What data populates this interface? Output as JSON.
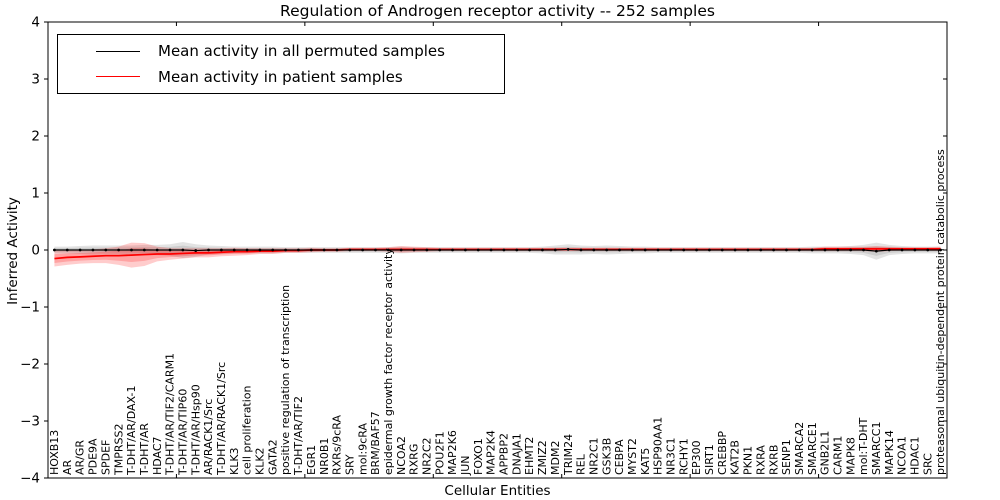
{
  "title": "Regulation of Androgen receptor activity -- 252 samples",
  "legend": {
    "items": [
      {
        "label": "Mean activity in all permuted samples",
        "color": "#000000"
      },
      {
        "label": "Mean activity in patient samples",
        "color": "#ff0000"
      }
    ],
    "position": "upper left"
  },
  "chart_data": {
    "type": "line",
    "title": "Regulation of Androgen receptor activity -- 252 samples",
    "xlabel": "Cellular Entities",
    "ylabel": "Inferred Activity",
    "ylim": [
      -4,
      4
    ],
    "yticks": [
      -4,
      -3,
      -2,
      -1,
      0,
      1,
      2,
      3,
      4
    ],
    "xlim": [
      0,
      70
    ],
    "xticks": [
      0,
      10,
      20,
      30,
      40,
      50,
      60,
      70
    ],
    "grid": false,
    "legend_position": "upper left",
    "categories": [
      "HOXB13",
      "AR",
      "AR/GR",
      "PDE9A",
      "SPDEF",
      "TMPRSS2",
      "T-DHT/AR/DAX-1",
      "T-DHT/AR",
      "HDAC7",
      "T-DHT/AR/TIF2/CARM1",
      "T-DHT/AR/TIP60",
      "T-DHT/AR/Hsp90",
      "AR/RACK1/Src",
      "T-DHT/AR/RACK1/Src",
      "KLK3",
      "cell proliferation",
      "KLK2",
      "GATA2",
      "positive regulation of transcription",
      "T-DHT/AR/TIF2",
      "EGR1",
      "NR0B1",
      "RXRs/9cRA",
      "SRY",
      "mol:9cRA",
      "BRM/BAF57",
      "epidermal growth factor receptor activity",
      "NCOA2",
      "RXRG",
      "NR2C2",
      "POU2F1",
      "MAP2K6",
      "JUN",
      "FOXO1",
      "MAP2K4",
      "APPBP2",
      "DNAJA1",
      "EHMT2",
      "ZMIZ2",
      "MDM2",
      "TRIM24",
      "REL",
      "NR2C1",
      "GSK3B",
      "CEBPA",
      "MYST2",
      "KAT5",
      "HSP90AA1",
      "NR3C1",
      "RCHY1",
      "EP300",
      "SIRT1",
      "CREBBP",
      "KAT2B",
      "PKN1",
      "RXRA",
      "RXRB",
      "SENP1",
      "SMARCA2",
      "SMARCE1",
      "GNB2L1",
      "CARM1",
      "MAPK8",
      "mol:T-DHT",
      "SMARCC1",
      "MAPK14",
      "NCOA1",
      "HDAC1",
      "SRC",
      "proteasomal ubiquitin-dependent protein catabolic process"
    ],
    "series": [
      {
        "name": "Mean activity in all permuted samples",
        "color": "#000000",
        "band_color": "#808080",
        "mean": [
          0,
          0,
          0,
          0,
          0,
          0,
          0,
          0,
          0,
          0,
          0,
          -0.01,
          0,
          0,
          0,
          0,
          0,
          0,
          0,
          0,
          0,
          0,
          0,
          0,
          0,
          0,
          0,
          0,
          0,
          0,
          0,
          0,
          0,
          0,
          0,
          0,
          0,
          0,
          0,
          0,
          0.01,
          0,
          0,
          0,
          0,
          0,
          0,
          0,
          0,
          0,
          0,
          0,
          0,
          0,
          0,
          0,
          0,
          0,
          0,
          0,
          0,
          0,
          0,
          0,
          -0.02,
          0,
          0,
          0,
          0,
          0
        ],
        "band_halfwidth": [
          0.06,
          0.06,
          0.07,
          0.08,
          0.08,
          0.08,
          0.08,
          0.09,
          0.09,
          0.1,
          0.14,
          0.11,
          0.08,
          0.07,
          0.06,
          0.06,
          0.06,
          0.06,
          0.05,
          0.05,
          0.05,
          0.05,
          0.05,
          0.05,
          0.05,
          0.05,
          0.05,
          0.06,
          0.05,
          0.05,
          0.05,
          0.05,
          0.05,
          0.05,
          0.05,
          0.05,
          0.05,
          0.05,
          0.06,
          0.08,
          0.09,
          0.08,
          0.07,
          0.08,
          0.07,
          0.06,
          0.06,
          0.05,
          0.05,
          0.05,
          0.05,
          0.05,
          0.05,
          0.05,
          0.05,
          0.05,
          0.05,
          0.05,
          0.05,
          0.06,
          0.06,
          0.06,
          0.07,
          0.09,
          0.15,
          0.09,
          0.07,
          0.06,
          0.06,
          0.06
        ]
      },
      {
        "name": "Mean activity in patient samples",
        "color": "#ff0000",
        "band_color": "#ff0000",
        "mean": [
          -0.15,
          -0.13,
          -0.12,
          -0.11,
          -0.1,
          -0.1,
          -0.09,
          -0.08,
          -0.07,
          -0.07,
          -0.06,
          -0.05,
          -0.05,
          -0.04,
          -0.03,
          -0.03,
          -0.02,
          -0.02,
          -0.01,
          -0.01,
          0,
          0,
          0,
          0.01,
          0.01,
          0.01,
          0.01,
          0.01,
          0.01,
          0.01,
          0.01,
          0.01,
          0.01,
          0.01,
          0.01,
          0.01,
          0.01,
          0.01,
          0.01,
          0.01,
          0.01,
          0.01,
          0.01,
          0.01,
          0.01,
          0.01,
          0.01,
          0.01,
          0.01,
          0.01,
          0.01,
          0.01,
          0.01,
          0.01,
          0.01,
          0.01,
          0.01,
          0.01,
          0.01,
          0.01,
          0.02,
          0.02,
          0.02,
          0.02,
          0.02,
          0.02,
          0.02,
          0.02,
          0.02,
          0.02
        ],
        "band_halfwidth": [
          0.14,
          0.13,
          0.12,
          0.12,
          0.13,
          0.16,
          0.22,
          0.2,
          0.13,
          0.1,
          0.09,
          0.08,
          0.08,
          0.07,
          0.07,
          0.06,
          0.05,
          0.05,
          0.04,
          0.04,
          0.04,
          0.03,
          0.03,
          0.03,
          0.03,
          0.03,
          0.04,
          0.06,
          0.05,
          0.04,
          0.03,
          0.03,
          0.03,
          0.03,
          0.03,
          0.03,
          0.03,
          0.03,
          0.03,
          0.03,
          0.03,
          0.03,
          0.03,
          0.03,
          0.03,
          0.03,
          0.03,
          0.03,
          0.03,
          0.03,
          0.03,
          0.03,
          0.03,
          0.03,
          0.03,
          0.03,
          0.03,
          0.03,
          0.03,
          0.03,
          0.04,
          0.04,
          0.04,
          0.04,
          0.05,
          0.04,
          0.03,
          0.03,
          0.03,
          0.04
        ]
      }
    ]
  }
}
